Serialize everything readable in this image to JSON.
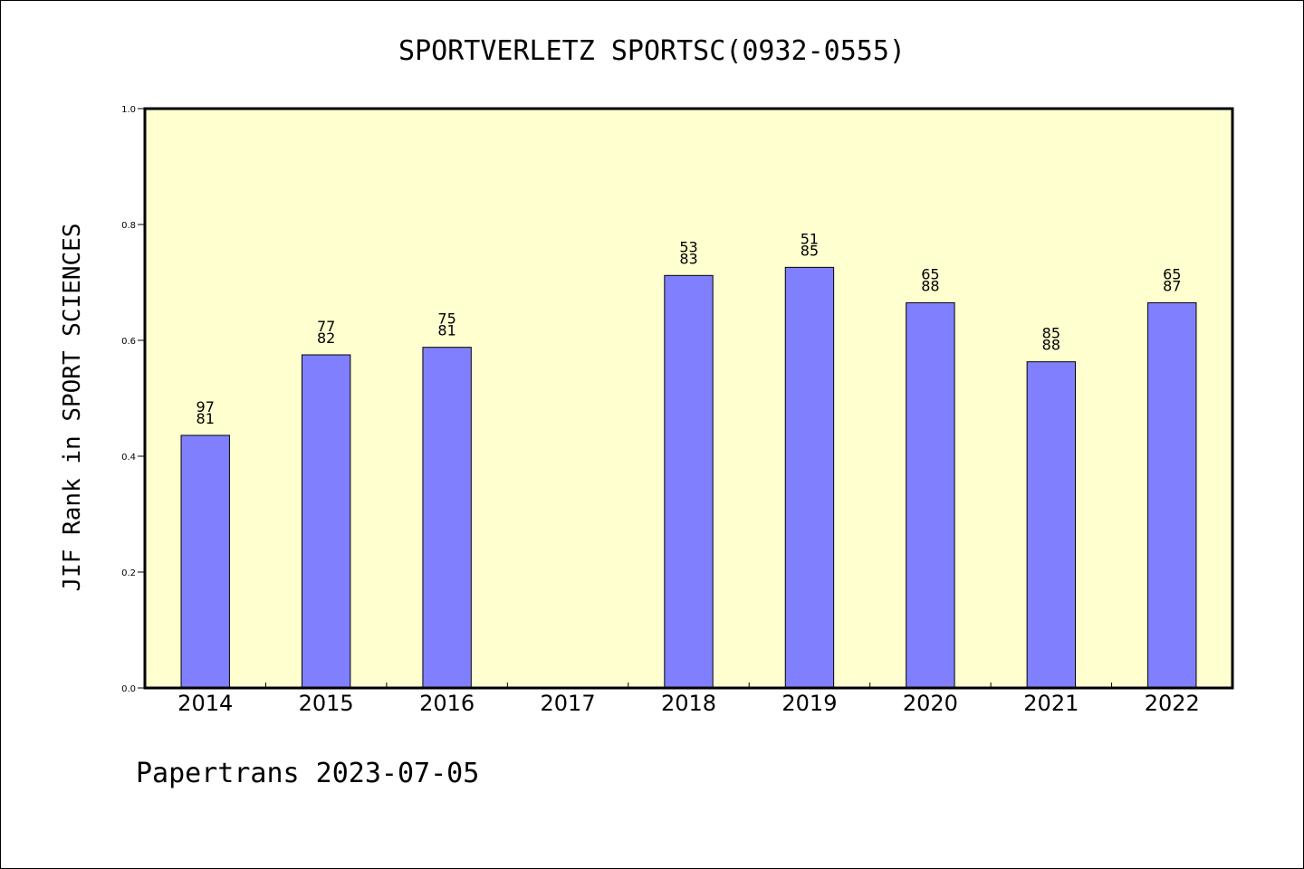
{
  "chart_data": {
    "type": "bar",
    "title": "SPORTVERLETZ SPORTSC(0932-0555)",
    "ylabel": "JIF Rank in SPORT SCIENCES",
    "xlabel": "",
    "ylim": [
      0,
      1.0
    ],
    "yticks": [
      "0.0",
      "0.2",
      "0.4",
      "0.6",
      "0.8",
      "1.0"
    ],
    "grid": false,
    "categories": [
      "2014",
      "2015",
      "2016",
      "2017",
      "2018",
      "2019",
      "2020",
      "2021",
      "2022"
    ],
    "values": [
      0.436,
      0.575,
      0.588,
      null,
      0.712,
      0.726,
      0.665,
      0.563,
      0.665
    ],
    "bar_labels": [
      [
        "97",
        "81"
      ],
      [
        "77",
        "82"
      ],
      [
        "75",
        "81"
      ],
      null,
      [
        "53",
        "83"
      ],
      [
        "51",
        "85"
      ],
      [
        "65",
        "88"
      ],
      [
        "85",
        "88"
      ],
      [
        "65",
        "87"
      ]
    ],
    "colors": {
      "bar": "#8080ff",
      "plot_bg": "#ffffd0",
      "axis": "#000000"
    }
  },
  "footer": "Papertrans 2023-07-05"
}
